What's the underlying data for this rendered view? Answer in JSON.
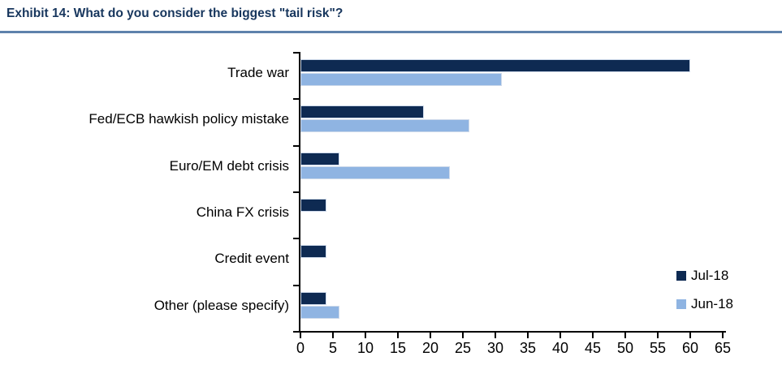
{
  "chart_data": {
    "type": "bar",
    "orientation": "horizontal",
    "title": "Exhibit 14: What do you consider the biggest \"tail risk\"?",
    "categories": [
      "Trade war",
      "Fed/ECB hawkish policy mistake",
      "Euro/EM debt crisis",
      "China FX crisis",
      "Credit event",
      "Other (please specify)"
    ],
    "series": [
      {
        "name": "Jul-18",
        "color": "#0E2A52",
        "values": [
          60,
          19,
          6,
          4,
          4,
          4
        ]
      },
      {
        "name": "Jun-18",
        "color": "#8FB4E2",
        "values": [
          31,
          26,
          23,
          0,
          0,
          6
        ]
      }
    ],
    "xlabel": "",
    "ylabel": "",
    "x_axis": {
      "min": 0,
      "max": 65,
      "tick_step": 5
    },
    "grid": false,
    "legend_position": "bottom-right"
  },
  "colors": {
    "title_text": "#17365D",
    "title_rule": "#5E82AC",
    "axis": "#000000",
    "jul_bar": "#0E2A52",
    "jun_bar": "#8FB4E2"
  }
}
